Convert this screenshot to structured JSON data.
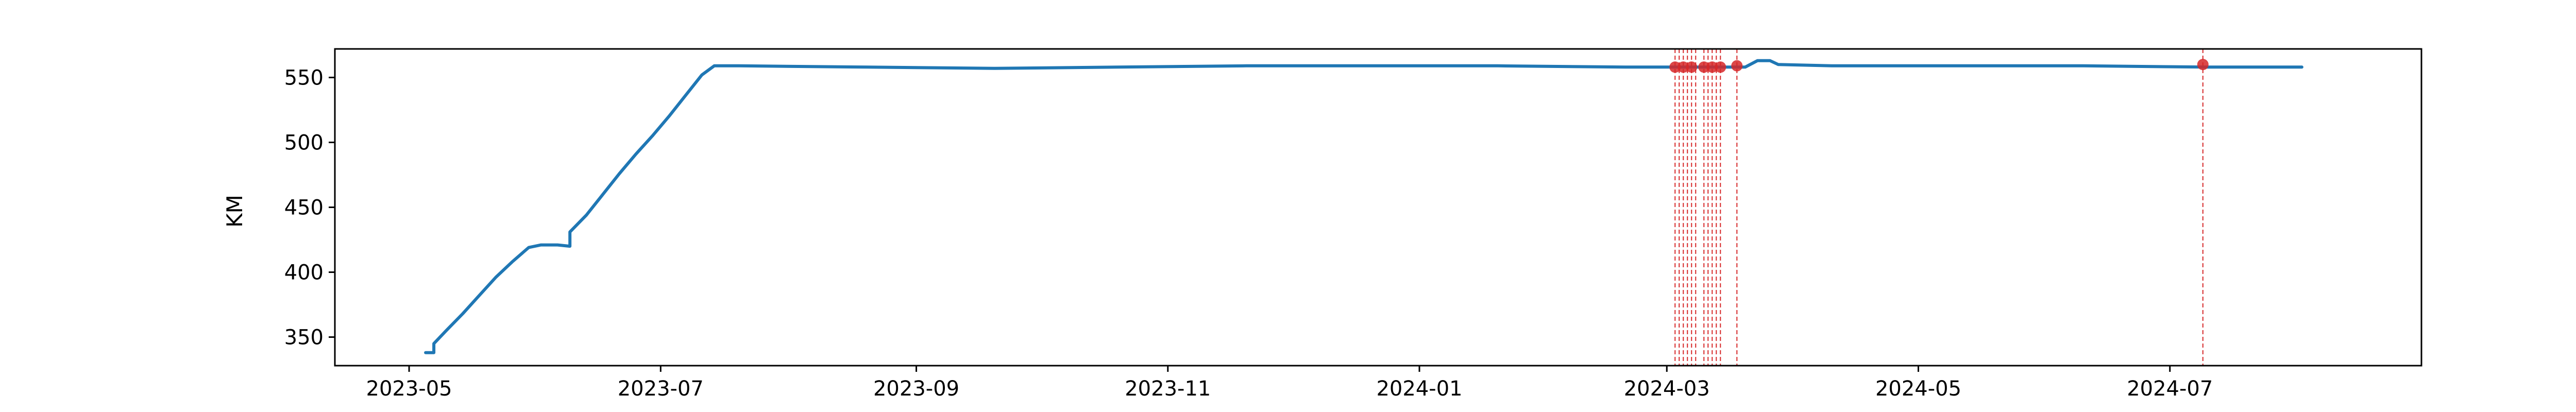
{
  "chart_data": {
    "type": "line",
    "title": "",
    "xlabel": "",
    "ylabel": "KM",
    "xlim": [
      "2023-04-13",
      "2024-08-31"
    ],
    "ylim": [
      328,
      572
    ],
    "x_ticks": [
      "2023-05",
      "2023-07",
      "2023-09",
      "2023-11",
      "2024-01",
      "2024-03",
      "2024-05",
      "2024-07"
    ],
    "y_ticks": [
      350,
      400,
      450,
      500,
      550
    ],
    "grid": false,
    "legend": "none",
    "series": [
      {
        "color": "#1f77b4",
        "points": [
          [
            "2023-05-05",
            338
          ],
          [
            "2023-05-07",
            338
          ],
          [
            "2023-05-07",
            345
          ],
          [
            "2023-05-10",
            355
          ],
          [
            "2023-05-14",
            368
          ],
          [
            "2023-05-18",
            382
          ],
          [
            "2023-05-22",
            396
          ],
          [
            "2023-05-26",
            408
          ],
          [
            "2023-05-30",
            419
          ],
          [
            "2023-06-02",
            421
          ],
          [
            "2023-06-06",
            421
          ],
          [
            "2023-06-09",
            420
          ],
          [
            "2023-06-09",
            431
          ],
          [
            "2023-06-13",
            444
          ],
          [
            "2023-06-17",
            460
          ],
          [
            "2023-06-21",
            476
          ],
          [
            "2023-06-25",
            491
          ],
          [
            "2023-06-29",
            505
          ],
          [
            "2023-07-03",
            520
          ],
          [
            "2023-07-07",
            536
          ],
          [
            "2023-07-11",
            552
          ],
          [
            "2023-07-14",
            559
          ],
          [
            "2023-07-20",
            559
          ],
          [
            "2023-08-20",
            558
          ],
          [
            "2023-09-20",
            557
          ],
          [
            "2023-10-20",
            558
          ],
          [
            "2023-11-20",
            559
          ],
          [
            "2023-12-20",
            559
          ],
          [
            "2024-01-20",
            559
          ],
          [
            "2024-02-20",
            558
          ],
          [
            "2024-03-04",
            558
          ],
          [
            "2024-03-20",
            558
          ],
          [
            "2024-03-23",
            563
          ],
          [
            "2024-03-26",
            563
          ],
          [
            "2024-03-28",
            560
          ],
          [
            "2024-04-10",
            559
          ],
          [
            "2024-05-10",
            559
          ],
          [
            "2024-06-10",
            559
          ],
          [
            "2024-07-10",
            558
          ],
          [
            "2024-08-02",
            558
          ]
        ]
      }
    ],
    "vlines": {
      "color": "#d62728",
      "style": "dashed",
      "dates": [
        "2024-03-03",
        "2024-03-04",
        "2024-03-05",
        "2024-03-06",
        "2024-03-07",
        "2024-03-08",
        "2024-03-10",
        "2024-03-11",
        "2024-03-12",
        "2024-03-13",
        "2024-03-14",
        "2024-03-18",
        "2024-07-09"
      ]
    },
    "markers": {
      "color": "#d62728",
      "points": [
        [
          "2024-03-03",
          558
        ],
        [
          "2024-03-05",
          558
        ],
        [
          "2024-03-07",
          558
        ],
        [
          "2024-03-10",
          558
        ],
        [
          "2024-03-12",
          558
        ],
        [
          "2024-03-14",
          558
        ],
        [
          "2024-03-18",
          559
        ],
        [
          "2024-07-09",
          560
        ]
      ]
    }
  }
}
